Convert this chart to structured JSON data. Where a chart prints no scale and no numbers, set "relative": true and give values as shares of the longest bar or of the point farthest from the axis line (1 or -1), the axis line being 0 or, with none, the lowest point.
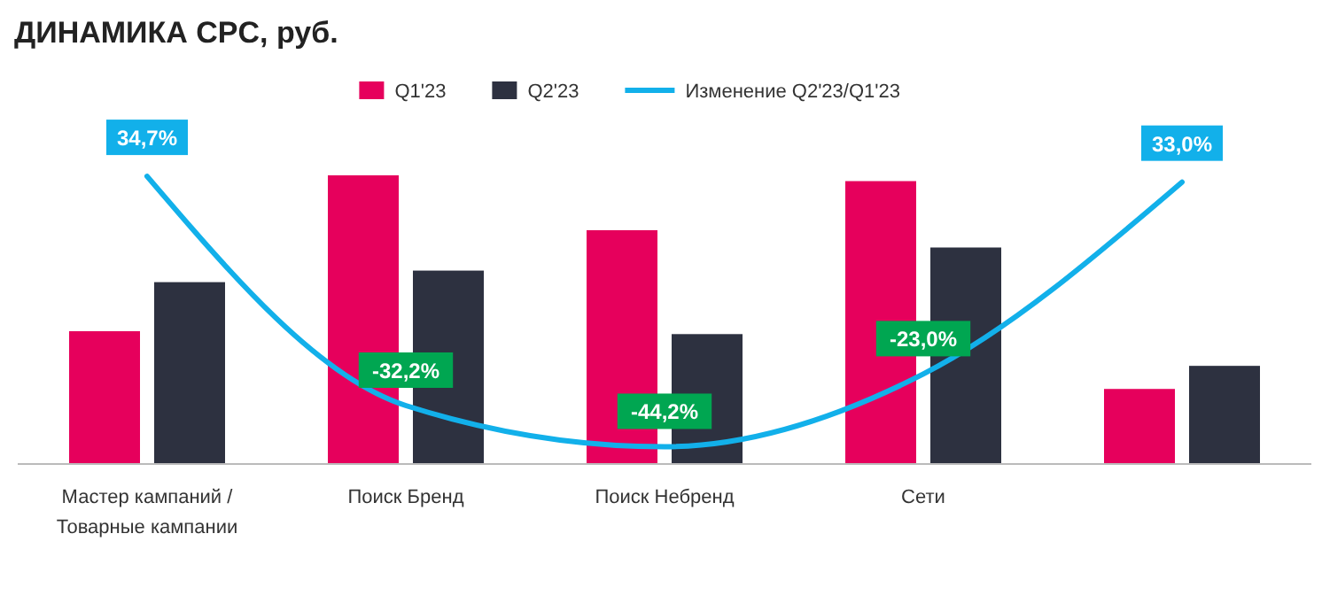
{
  "chart_data": [
    {
      "type": "bar",
      "title": "ДИНАМИКА CPC, руб.",
      "relative": true,
      "legend": "top",
      "categories": [
        "Мастер кампаний / Товарные кампании",
        "Поиск Бренд",
        "Поиск Небренд",
        "Сети",
        null
      ],
      "series": [
        {
          "name": "Q1'23",
          "color": "#e6005c",
          "values": [
            0.46,
            1,
            0.81,
            0.98,
            0.26
          ]
        },
        {
          "name": "Q2'23",
          "color": "#2d3140",
          "values": [
            0.63,
            0.67,
            0.45,
            0.75,
            0.34
          ]
        }
      ]
    },
    {
      "type": "line",
      "legend": "top",
      "categories": [
        null,
        null,
        null,
        null,
        null
      ],
      "series": [
        {
          "name": "Изменение Q2'23/Q1'23",
          "color": "#12b0ea",
          "values": [
            34.7,
            -32.2,
            -44.2,
            -23.0,
            33.0
          ],
          "value_labels": [
            "34,7%",
            "-32,2%",
            "-44,2%",
            "-23,0%",
            "33,0%"
          ]
        }
      ]
    }
  ]
}
